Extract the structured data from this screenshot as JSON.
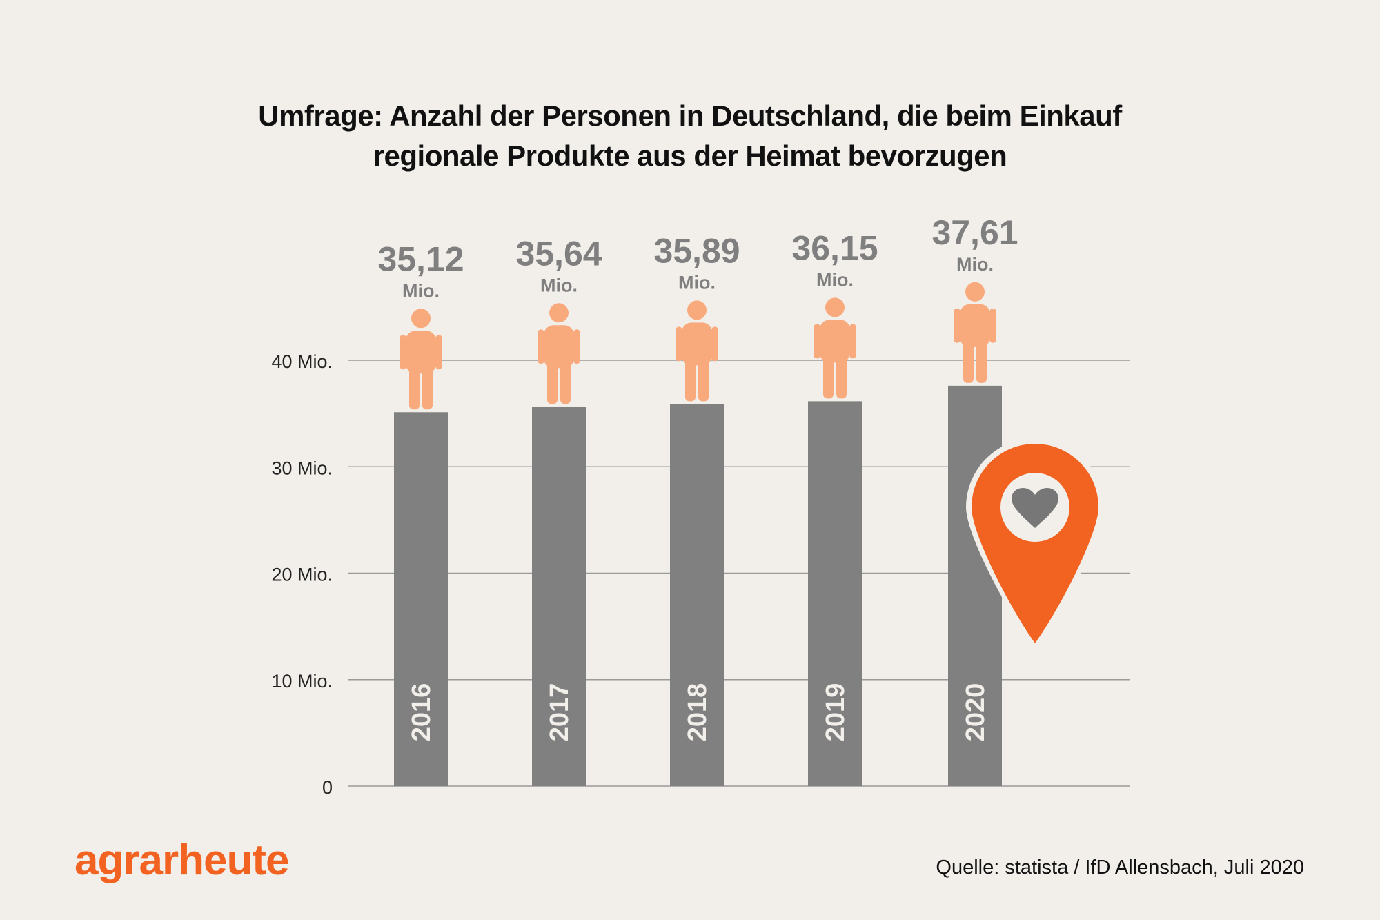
{
  "title": {
    "line1": "Umfrage: Anzahl der Personen in Deutschland, die beim Einkauf",
    "line2": "regionale Produkte aus der Heimat bevorzugen"
  },
  "logo": {
    "text": "agrarheute"
  },
  "source": "Quelle: statista / IfD Allensbach, Juli 2020",
  "colors": {
    "background": "#f2efea",
    "bar": "#808080",
    "person": "#f9aa7d",
    "accent": "#f26322",
    "value_label": "#7f7f7f",
    "grid": "#9a9a9a"
  },
  "icons": [
    "person-icon",
    "location-pin-heart-icon"
  ],
  "chart_data": {
    "type": "bar",
    "categories": [
      "2016",
      "2017",
      "2018",
      "2019",
      "2020"
    ],
    "values": [
      35.12,
      35.64,
      35.89,
      36.15,
      37.61
    ],
    "value_labels": [
      "35,12",
      "35,64",
      "35,89",
      "36,15",
      "37,61"
    ],
    "value_unit": "Mio.",
    "ylim": [
      0,
      40
    ],
    "yticks": [
      {
        "value": 0,
        "label": "0"
      },
      {
        "value": 10,
        "label": "10 Mio."
      },
      {
        "value": 20,
        "label": "20 Mio."
      },
      {
        "value": 30,
        "label": "30 Mio."
      },
      {
        "value": 40,
        "label": "40 Mio."
      }
    ],
    "grid": true,
    "legend": "none"
  }
}
